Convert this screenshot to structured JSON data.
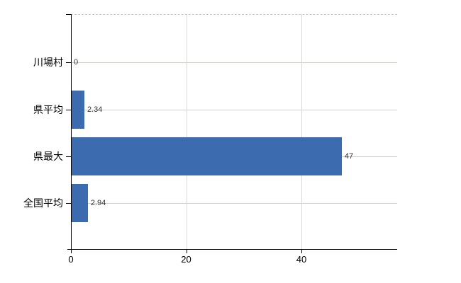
{
  "chart_data": {
    "type": "bar",
    "orientation": "horizontal",
    "title": "",
    "xlabel": "",
    "ylabel": "",
    "categories": [
      "川場村",
      "県平均",
      "県最大",
      "全国平均"
    ],
    "values": [
      0,
      2.34,
      47,
      2.94
    ],
    "value_labels": [
      "0",
      "2.34",
      "47",
      "2.94"
    ],
    "x_ticks": [
      0,
      20,
      40
    ],
    "x_tick_labels": [
      "0",
      "20",
      "40"
    ],
    "xlim": [
      0,
      56.6
    ],
    "grid": "vertical-lines-at-ticks-and-horizontal-line-per-category",
    "legend": "none",
    "bar_color": "#3c6caf",
    "vgrid_color": "#d9d9d9",
    "hline_color": "#ccd4ca",
    "axis_color": "#000000",
    "value_label_color": "#333333",
    "background_color": "#ffffff"
  }
}
